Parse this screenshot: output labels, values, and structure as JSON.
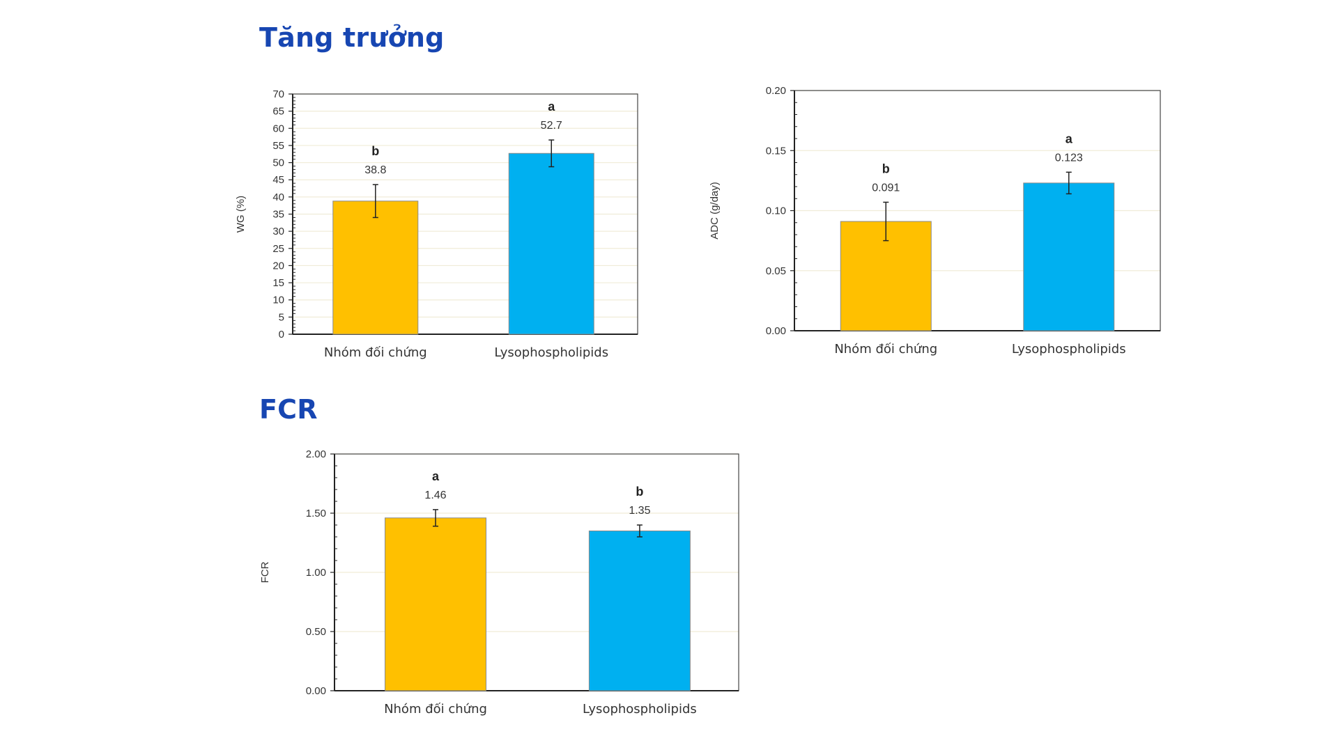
{
  "titles": {
    "growth": "Tăng trưởng",
    "fcr": "FCR"
  },
  "colors": {
    "control": "#ffc000",
    "lyso": "#00b0f0",
    "heading": "#1746b2",
    "grid": "#f0ecd8",
    "axis": "#222222",
    "frame": "#444444"
  },
  "chart_data": [
    {
      "id": "wg",
      "type": "bar",
      "categories": [
        "Nhóm đối chứng",
        "Lysophospholipids"
      ],
      "values": [
        38.8,
        52.7
      ],
      "value_labels": [
        "38.8",
        "52.7"
      ],
      "error": [
        4.8,
        3.9
      ],
      "significance": [
        "b",
        "a"
      ],
      "ylabel": "WG (%)",
      "ylim": [
        0,
        70
      ],
      "yticks": [
        0,
        5,
        10,
        15,
        20,
        25,
        30,
        35,
        40,
        45,
        50,
        55,
        60,
        65,
        70
      ],
      "ytick_labels": [
        "0",
        "5",
        "10",
        "15",
        "20",
        "25",
        "30",
        "35",
        "40",
        "45",
        "50",
        "55",
        "60",
        "65",
        "70"
      ],
      "grid": true
    },
    {
      "id": "adc",
      "type": "bar",
      "categories": [
        "Nhóm đối chứng",
        "Lysophospholipids"
      ],
      "values": [
        0.091,
        0.123
      ],
      "value_labels": [
        "0.091",
        "0.123"
      ],
      "error": [
        0.016,
        0.009
      ],
      "significance": [
        "b",
        "a"
      ],
      "ylabel": "ADC (g/day)",
      "ylim": [
        0,
        0.2
      ],
      "yticks": [
        0,
        0.05,
        0.1,
        0.15,
        0.2
      ],
      "ytick_labels": [
        "0.00",
        "0.05",
        "0.10",
        "0.15",
        "0.20"
      ],
      "grid": true
    },
    {
      "id": "fcr",
      "type": "bar",
      "categories": [
        "Nhóm đối chứng",
        "Lysophospholipids"
      ],
      "values": [
        1.46,
        1.35
      ],
      "value_labels": [
        "1.46",
        "1.35"
      ],
      "error": [
        0.07,
        0.05
      ],
      "significance": [
        "a",
        "b"
      ],
      "ylabel": "FCR",
      "ylim": [
        0,
        2
      ],
      "yticks": [
        0,
        0.5,
        1,
        1.5,
        2
      ],
      "ytick_labels": [
        "0.00",
        "0.50",
        "1.00",
        "1.50",
        "2.00"
      ],
      "grid": true
    }
  ]
}
